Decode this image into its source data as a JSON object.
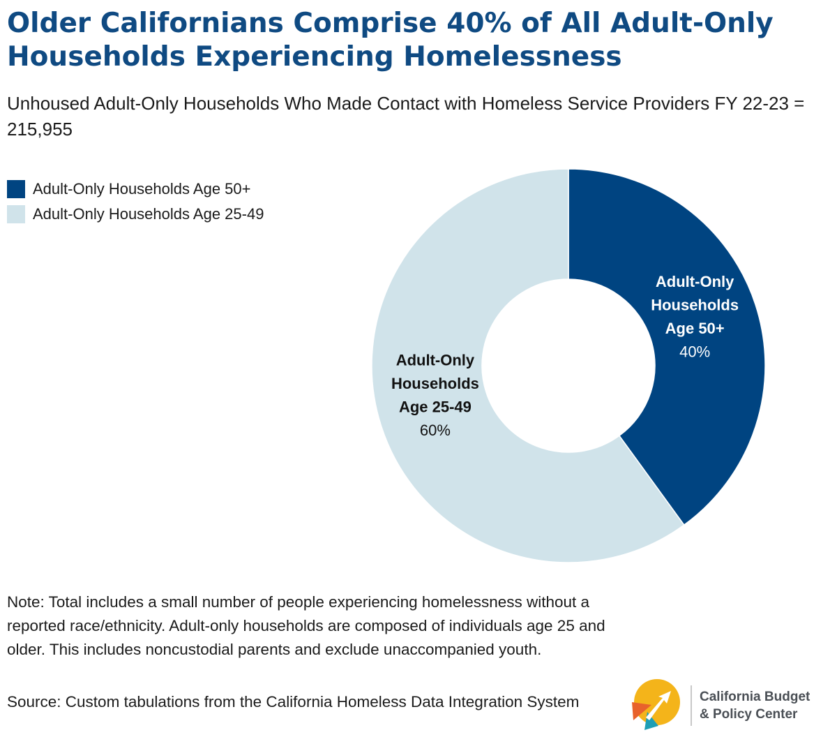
{
  "header": {
    "title": "Older Californians Comprise 40% of All Adult-Only Households Experiencing Homelessness",
    "subtitle": "Unhoused Adult-Only Households Who Made Contact with Homeless Service Providers FY 22-23 = 215,955"
  },
  "chart_data": {
    "type": "pie",
    "variant": "donut",
    "title": "Older Californians Comprise 40% of All Adult-Only Households Experiencing Homelessness",
    "subtitle": "Unhoused Adult-Only Households Who Made Contact with Homeless Service Providers FY 22-23 = 215,955",
    "legend_position": "top-left",
    "slices": [
      {
        "name": "Adult-Only Households Age 50+",
        "label_lines": [
          "Adult-Only",
          "Households",
          "Age 50+"
        ],
        "value": 40,
        "value_label": "40%",
        "color": "#004481",
        "label_color": "#ffffff"
      },
      {
        "name": "Adult-Only Households Age 25-49",
        "label_lines": [
          "Adult-Only",
          "Households",
          "Age 25-49"
        ],
        "value": 60,
        "value_label": "60%",
        "color": "#d0e3ea",
        "label_color": "#111111"
      }
    ]
  },
  "footer": {
    "note": "Note: Total includes a small number of people experiencing homelessness without a reported race/ethnicity. Adult-only households are composed of individuals age 25 and older. This includes noncustodial parents and exclude unaccompanied youth.",
    "source": "Source: Custom tabulations from the California Homeless Data Integration System"
  },
  "logo": {
    "line1": "California Budget",
    "line2": "& Policy Center",
    "colors": [
      "#f4b41a",
      "#e8622c",
      "#1e9eb5"
    ],
    "icon": "arrow-logo-icon"
  }
}
